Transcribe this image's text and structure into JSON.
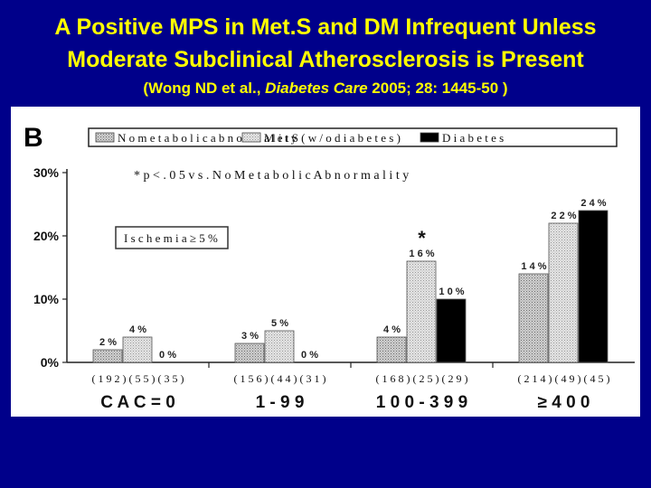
{
  "slide": {
    "title_line1": "A Positive MPS in Met.S and DM Infrequent Unless",
    "title_line2": "Moderate Subclinical Atherosclerosis is Present",
    "citation_pre": "(Wong ND et al., ",
    "citation_journal": "Diabetes Care",
    "citation_post": " 2005; 28: 1445-50 )"
  },
  "chart_data": {
    "type": "bar",
    "panel_label": "B",
    "categories": [
      "C A C = 0",
      "1 - 9 9",
      "1 0 0 - 3 9 9",
      "≥ 4 0 0"
    ],
    "series": [
      {
        "name": "N o  m e t a b o l i c  a b n o r m a l i t y",
        "values": [
          2,
          3,
          4,
          14
        ],
        "color": "#b8b8b8",
        "pattern": "dots"
      },
      {
        "name": "M e t S  ( w / o  d i a b e t e s )",
        "values": [
          4,
          5,
          16,
          22
        ],
        "color": "#d4d4d4",
        "pattern": "light-dots"
      },
      {
        "name": "D i a b e t e s",
        "values": [
          0,
          0,
          10,
          24
        ],
        "color": "#000000",
        "pattern": "solid"
      }
    ],
    "value_labels": [
      [
        "2 %",
        "4 %",
        "0 %"
      ],
      [
        "3 %",
        "5 %",
        "0 %"
      ],
      [
        "4 %",
        "1 6 %",
        "1 0 %"
      ],
      [
        "1 4 %",
        "2 2 %",
        "2 4 %"
      ]
    ],
    "sample_sizes": [
      "( 1 9 2 )  ( 5 5 )  ( 3 5 )",
      "( 1 5 6 )  ( 4 4 )  ( 3 1 )",
      "( 1 6 8 )  ( 2 5 )  ( 2 9 )",
      "( 2 1 4 )  ( 4 9 )  ( 4 5 )"
    ],
    "ylim": [
      0,
      30
    ],
    "yticks": [
      0,
      10,
      20,
      30
    ],
    "ytick_labels": [
      "0%",
      "10%",
      "20%",
      "30%"
    ],
    "legend_position": "top",
    "annotations": {
      "significance_note": "* p < . 0 5  v s .  N o  M e t a b o l i c  A b n o r m a l i t y",
      "ischemia_box": "I s c h e m i a  ≥ 5 %",
      "star": "*",
      "star_category_index": 2,
      "star_series_index": 1
    }
  }
}
